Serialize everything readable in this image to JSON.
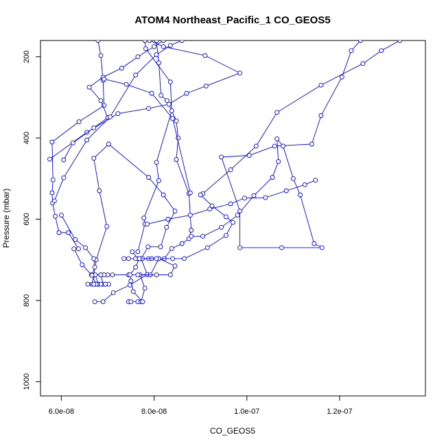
{
  "chart_data": {
    "type": "line",
    "title": "ATOM4 Northeast_Pacific_1 CO_GEOS5",
    "xlabel": "CO_GEOS5",
    "ylabel": "Pressure (mbar)",
    "xlim": [
      5.55e-08,
      1.385e-07
    ],
    "ylim": [
      1035,
      160
    ],
    "y_reversed": true,
    "x_ticks": [
      6e-08,
      8e-08,
      1e-07,
      1.2e-07
    ],
    "x_tick_labels": [
      "6.0e-08",
      "8.0e-08",
      "1.0e-07",
      "1.2e-07"
    ],
    "y_ticks": [
      200,
      400,
      600,
      800,
      1000
    ],
    "y_tick_labels": [
      "200",
      "400",
      "600",
      "800",
      "1000"
    ],
    "color": "#0000ff",
    "grid": false,
    "series": [
      {
        "points": [
          [
            6.72e-08,
            803
          ],
          [
            6.9e-08,
            803
          ],
          [
            7.12e-08,
            781
          ],
          [
            7.48e-08,
            762
          ],
          [
            7.85e-08,
            736
          ],
          [
            7.72e-08,
            697
          ],
          [
            7.87e-08,
            668
          ],
          [
            8.14e-08,
            668
          ],
          [
            8.27e-08,
            620
          ],
          [
            8.45e-08,
            580
          ],
          [
            8.2e-08,
            540
          ],
          [
            7.88e-08,
            497
          ],
          [
            7.02e-08,
            415
          ],
          [
            6.7e-08,
            450
          ],
          [
            6.82e-08,
            530
          ],
          [
            6.98e-08,
            618
          ],
          [
            6.75e-08,
            700
          ],
          [
            6.7e-08,
            738
          ],
          [
            6.66e-08,
            760
          ],
          [
            6.9e-08,
            760
          ],
          [
            6.85e-08,
            737
          ],
          [
            6.65e-08,
            737
          ],
          [
            6.45e-08,
            712
          ],
          [
            6.27e-08,
            673
          ],
          [
            6.37e-08,
            673
          ],
          [
            6.15e-08,
            633
          ],
          [
            5.95e-08,
            633
          ],
          [
            5.87e-08,
            593
          ],
          [
            5.81e-08,
            560
          ],
          [
            5.8e-08,
            535
          ],
          [
            5.82e-08,
            503
          ],
          [
            5.8e-08,
            410
          ],
          [
            6.38e-08,
            360
          ],
          [
            6.92e-08,
            320
          ],
          [
            6.9e-08,
            258
          ],
          [
            6.85e-08,
            197
          ],
          [
            6.79e-08,
            160
          ]
        ]
      },
      {
        "points": [
          [
            7.45e-08,
            803
          ],
          [
            7.5e-08,
            803
          ],
          [
            7.65e-08,
            803
          ],
          [
            7.72e-08,
            803
          ],
          [
            7.8e-08,
            770
          ],
          [
            7.7e-08,
            737
          ],
          [
            7.92e-08,
            737
          ],
          [
            8.1e-08,
            697
          ],
          [
            8.22e-08,
            697
          ],
          [
            8.38e-08,
            672
          ],
          [
            8.6e-08,
            660
          ],
          [
            8.75e-08,
            648
          ],
          [
            8.8e-08,
            627
          ],
          [
            8.75e-08,
            537
          ],
          [
            8.48e-08,
            453
          ],
          [
            8.52e-08,
            400
          ],
          [
            8.48e-08,
            358
          ],
          [
            8.28e-08,
            308
          ],
          [
            8.15e-08,
            295
          ],
          [
            8.1e-08,
            215
          ],
          [
            8.05e-08,
            160
          ]
        ]
      },
      {
        "points": [
          [
            7.65e-08,
            680
          ],
          [
            7.8e-08,
            612
          ],
          [
            7.78e-08,
            597
          ],
          [
            8.1e-08,
            505
          ],
          [
            8.05e-08,
            460
          ],
          [
            8.38e-08,
            333
          ],
          [
            8.35e-08,
            262
          ],
          [
            7.82e-08,
            180
          ],
          [
            7.8e-08,
            160
          ]
        ]
      },
      {
        "points": [
          [
            7.53e-08,
            680
          ],
          [
            7.65e-08,
            697
          ],
          [
            7.88e-08,
            697
          ],
          [
            8.1e-08,
            697
          ],
          [
            8.45e-08,
            715
          ],
          [
            8.35e-08,
            737
          ],
          [
            8.05e-08,
            737
          ],
          [
            7.65e-08,
            737
          ],
          [
            7.45e-08,
            737
          ],
          [
            7.1e-08,
            737
          ],
          [
            7e-08,
            737
          ],
          [
            6.92e-08,
            737
          ],
          [
            6.85e-08,
            737
          ],
          [
            6.73e-08,
            737
          ],
          [
            6.8e-08,
            760
          ],
          [
            6.95e-08,
            760
          ],
          [
            7.02e-08,
            760
          ],
          [
            6.95e-08,
            760
          ],
          [
            6.85e-08,
            760
          ],
          [
            6.78e-08,
            760
          ],
          [
            6.72e-08,
            760
          ],
          [
            6.57e-08,
            760
          ]
        ]
      },
      {
        "points": [
          [
            8.8e-08,
            642
          ],
          [
            9.05e-08,
            642
          ],
          [
            9.45e-08,
            620
          ],
          [
            9.8e-08,
            590
          ],
          [
            1.015e-07,
            542
          ],
          [
            1.055e-07,
            497
          ],
          [
            1.068e-07,
            458
          ],
          [
            1.065e-07,
            402
          ],
          [
            1.078e-07,
            420
          ],
          [
            1.1e-07,
            500
          ],
          [
            1.115e-07,
            540
          ],
          [
            1.145e-07,
            660
          ],
          [
            1.162e-07,
            670
          ],
          [
            1.075e-07,
            670
          ],
          [
            9.85e-08,
            670
          ],
          [
            9.85e-08,
            580
          ],
          [
            9.45e-08,
            447
          ],
          [
            1.005e-07,
            443
          ],
          [
            1.06e-07,
            420
          ],
          [
            1.14e-07,
            415
          ],
          [
            1.16e-07,
            345
          ],
          [
            1.205e-07,
            250
          ],
          [
            1.225e-07,
            185
          ],
          [
            1.245e-07,
            160
          ]
        ]
      },
      {
        "points": [
          [
            7.85e-08,
            612
          ],
          [
            8.3e-08,
            600
          ],
          [
            8.78e-08,
            590
          ],
          [
            9.2e-08,
            575
          ],
          [
            9.65e-08,
            562
          ],
          [
            9.95e-08,
            548
          ],
          [
            1.04e-07,
            547
          ],
          [
            1.085e-07,
            530
          ],
          [
            1.125e-07,
            515
          ],
          [
            1.148e-07,
            504
          ]
        ]
      },
      {
        "points": [
          [
            9.05e-08,
            537
          ],
          [
            9.65e-08,
            478
          ],
          [
            1.02e-07,
            420
          ],
          [
            1.065e-07,
            337
          ],
          [
            1.16e-07,
            270
          ],
          [
            1.25e-07,
            217
          ],
          [
            1.29e-07,
            185
          ],
          [
            1.33e-07,
            160
          ]
        ]
      },
      {
        "points": [
          [
            7.35e-08,
            697
          ],
          [
            7.45e-08,
            697
          ],
          [
            7.6e-08,
            697
          ],
          [
            7.75e-08,
            697
          ],
          [
            7.95e-08,
            697
          ],
          [
            8.1e-08,
            697
          ],
          [
            8.4e-08,
            697
          ],
          [
            8.65e-08,
            697
          ],
          [
            9.15e-08,
            670
          ],
          [
            9.55e-08,
            640
          ],
          [
            9.7e-08,
            608
          ],
          [
            9.55e-08,
            594
          ],
          [
            9.25e-08,
            567
          ],
          [
            9e-08,
            540
          ]
        ]
      },
      {
        "points": [
          [
            5.75e-08,
            452
          ],
          [
            6.55e-08,
            386
          ],
          [
            7.22e-08,
            340
          ],
          [
            7.88e-08,
            327
          ],
          [
            8.32e-08,
            317
          ],
          [
            8.7e-08,
            290
          ],
          [
            9.12e-08,
            272
          ],
          [
            9.85e-08,
            240
          ],
          [
            9.1e-08,
            197
          ],
          [
            8.2e-08,
            175
          ],
          [
            7.9e-08,
            160
          ]
        ]
      },
      {
        "points": [
          [
            6.05e-08,
            454
          ],
          [
            6.25e-08,
            412
          ],
          [
            6.7e-08,
            375
          ],
          [
            7e-08,
            350
          ],
          [
            6.85e-08,
            308
          ],
          [
            6.6e-08,
            275
          ],
          [
            6.9e-08,
            250
          ],
          [
            7.3e-08,
            228
          ],
          [
            7.65e-08,
            200
          ],
          [
            8e-08,
            175
          ],
          [
            8.2e-08,
            160
          ]
        ]
      },
      {
        "points": [
          [
            5.85e-08,
            555
          ],
          [
            6.05e-08,
            498
          ],
          [
            6.55e-08,
            405
          ],
          [
            7.05e-08,
            348
          ],
          [
            7.6e-08,
            245
          ],
          [
            8.05e-08,
            195
          ],
          [
            8.35e-08,
            172
          ],
          [
            8.6e-08,
            160
          ]
        ]
      },
      {
        "points": [
          [
            6e-08,
            590
          ],
          [
            6.3e-08,
            650
          ],
          [
            6.52e-08,
            670
          ],
          [
            6.7e-08,
            697
          ],
          [
            6.72e-08,
            718
          ],
          [
            6.66e-08,
            738
          ],
          [
            6.75e-08,
            760
          ],
          [
            6.7e-08,
            760
          ]
        ]
      },
      {
        "points": [
          [
            6.92e-08,
            255
          ],
          [
            7.4e-08,
            268
          ],
          [
            7.95e-08,
            290
          ],
          [
            8.4e-08,
            352
          ],
          [
            8.78e-08,
            535
          ]
        ]
      },
      {
        "points": [
          [
            7.75e-08,
            803
          ],
          [
            7.55e-08,
            778
          ],
          [
            7.5e-08,
            752
          ],
          [
            7.48e-08,
            737
          ],
          [
            7.6e-08,
            718
          ],
          [
            7.68e-08,
            697
          ],
          [
            8.05e-08,
            697
          ]
        ]
      }
    ]
  }
}
